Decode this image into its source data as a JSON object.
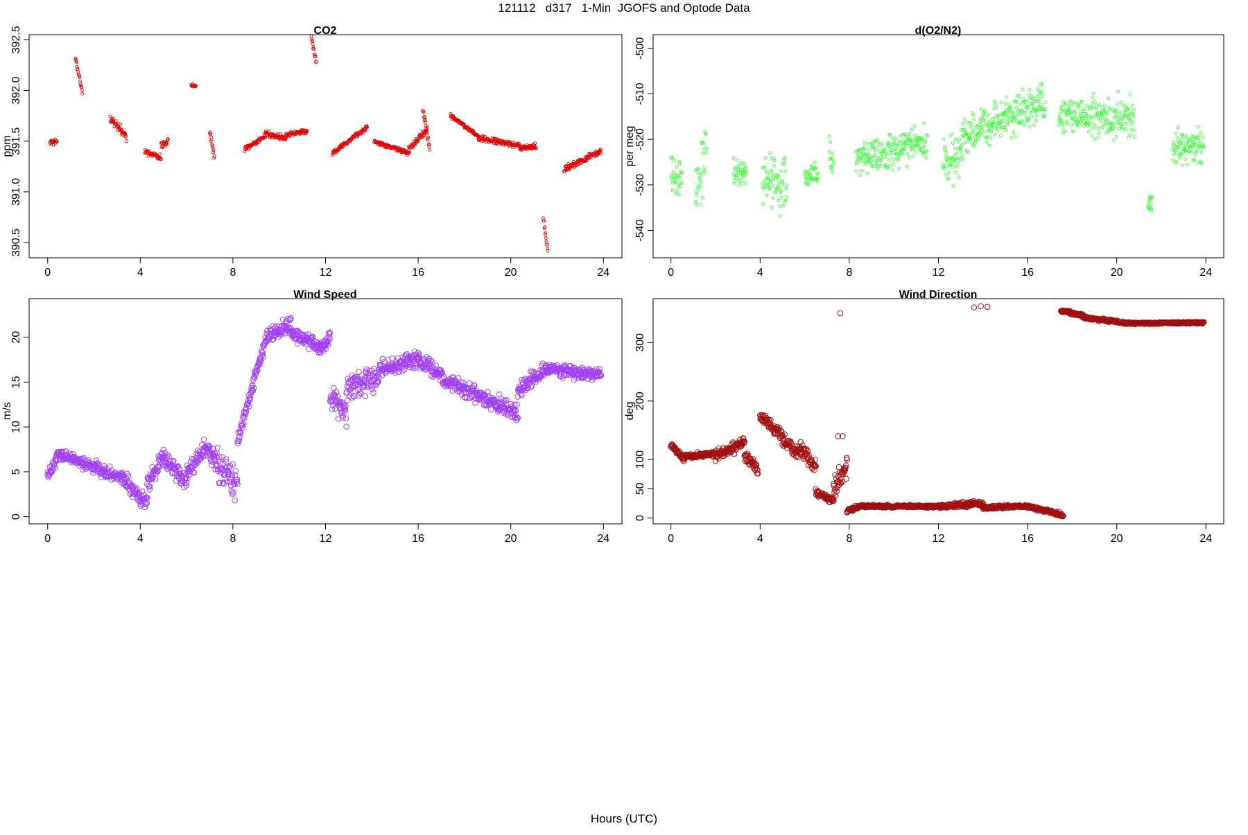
{
  "figure": {
    "title": "121112   d317   1-Min  JGOFS and Optode Data",
    "xlabel": "Hours (UTC)"
  },
  "chart_data": [
    {
      "type": "scatter",
      "title": "CO2",
      "ylabel": "ppm",
      "xlabel": "",
      "color": "#e00000",
      "marker_size": "small",
      "xlim": [
        -0.8,
        24.8
      ],
      "ylim": [
        390.35,
        392.55
      ],
      "xticks": [
        0,
        4,
        8,
        12,
        16,
        20,
        24
      ],
      "yticks": [
        390.5,
        391.0,
        391.5,
        392.0,
        392.5
      ],
      "ytick_labels": [
        "390.5",
        "391.0",
        "391.5",
        "392.0",
        "392.5"
      ],
      "grid": false,
      "segments": [
        [
          0.1,
          0.4,
          391.48,
          391.5,
          0.03
        ],
        [
          1.2,
          1.5,
          392.31,
          391.98,
          0.04
        ],
        [
          2.7,
          3.4,
          391.72,
          391.55,
          0.06
        ],
        [
          4.2,
          4.9,
          391.4,
          391.33,
          0.04
        ],
        [
          4.9,
          5.2,
          391.46,
          391.5,
          0.05
        ],
        [
          6.2,
          6.4,
          392.05,
          392.04,
          0.02
        ],
        [
          7.0,
          7.2,
          391.62,
          391.34,
          0.06
        ],
        [
          8.5,
          9.4,
          391.42,
          391.55,
          0.03
        ],
        [
          9.4,
          10.3,
          391.58,
          391.52,
          0.04
        ],
        [
          10.3,
          11.2,
          391.56,
          391.6,
          0.03
        ],
        [
          11.3,
          11.6,
          392.63,
          392.28,
          0.03
        ],
        [
          12.3,
          13.8,
          391.38,
          391.64,
          0.03
        ],
        [
          14.1,
          15.6,
          391.5,
          391.38,
          0.03
        ],
        [
          15.6,
          16.4,
          391.42,
          391.62,
          0.05
        ],
        [
          16.2,
          16.5,
          391.82,
          391.42,
          0.05
        ],
        [
          17.4,
          18.6,
          391.75,
          391.55,
          0.03
        ],
        [
          18.6,
          20.4,
          391.53,
          391.45,
          0.04
        ],
        [
          20.4,
          21.1,
          391.43,
          391.45,
          0.04
        ],
        [
          21.4,
          21.6,
          390.75,
          390.42,
          0.05
        ],
        [
          22.3,
          23.9,
          391.22,
          391.4,
          0.04
        ]
      ]
    },
    {
      "type": "scatter",
      "title": "d(O2/N2)",
      "ylabel": "per meg",
      "xlabel": "",
      "color": "#33ff33",
      "marker_size": "small",
      "xlim": [
        -0.8,
        24.8
      ],
      "ylim": [
        -546,
        -497
      ],
      "xticks": [
        0,
        4,
        8,
        12,
        16,
        20,
        24
      ],
      "yticks": [
        -540,
        -530,
        -520,
        -510,
        -500
      ],
      "ytick_labels": [
        "-540",
        "-530",
        "-520",
        "-510",
        "-500"
      ],
      "grid": false,
      "segments": [
        [
          0.0,
          0.5,
          -528,
          -528,
          6
        ],
        [
          1.1,
          1.6,
          -532,
          -522,
          9
        ],
        [
          2.8,
          3.4,
          -527,
          -527,
          4
        ],
        [
          4.1,
          5.2,
          -528,
          -530,
          8
        ],
        [
          6.0,
          6.6,
          -528,
          -528,
          4
        ],
        [
          7.1,
          7.3,
          -522,
          -525,
          6
        ],
        [
          8.3,
          11.5,
          -524,
          -521,
          6
        ],
        [
          12.2,
          13.1,
          -526,
          -522,
          8
        ],
        [
          13.1,
          16.8,
          -519,
          -512,
          6
        ],
        [
          17.4,
          20.8,
          -515,
          -515,
          6
        ],
        [
          21.4,
          21.6,
          -535,
          -534,
          3
        ],
        [
          22.5,
          23.9,
          -522,
          -521,
          5
        ]
      ]
    },
    {
      "type": "scatter",
      "title": "Wind Speed",
      "ylabel": "m/s",
      "xlabel": "",
      "color": "#a040f0",
      "marker_size": "large",
      "xlim": [
        -0.8,
        24.8
      ],
      "ylim": [
        -0.8,
        24.3
      ],
      "xticks": [
        0,
        4,
        8,
        12,
        16,
        20,
        24
      ],
      "yticks": [
        0,
        5,
        10,
        15,
        20
      ],
      "ytick_labels": [
        "0",
        "5",
        "10",
        "15",
        "20"
      ],
      "grid": false,
      "segments": [
        [
          0.0,
          0.5,
          4.5,
          7.0,
          1.0
        ],
        [
          0.5,
          2.0,
          7.0,
          5.5,
          0.8
        ],
        [
          2.0,
          3.2,
          5.5,
          4.2,
          1.0
        ],
        [
          3.2,
          4.3,
          4.2,
          1.5,
          1.5
        ],
        [
          4.3,
          5.0,
          3.5,
          7.0,
          1.3
        ],
        [
          5.0,
          6.0,
          6.5,
          4.0,
          1.5
        ],
        [
          6.0,
          7.0,
          5.0,
          8.0,
          1.5
        ],
        [
          7.0,
          8.2,
          7.0,
          3.5,
          2.5
        ],
        [
          8.2,
          9.5,
          8.5,
          20.5,
          1.0
        ],
        [
          9.5,
          10.5,
          20.0,
          21.5,
          1.2
        ],
        [
          10.5,
          11.8,
          20.5,
          19.0,
          1.2
        ],
        [
          11.8,
          12.2,
          19.0,
          20.0,
          1.0
        ],
        [
          12.2,
          12.9,
          13.5,
          11.5,
          1.8
        ],
        [
          12.9,
          14.3,
          14.5,
          15.5,
          2.0
        ],
        [
          14.3,
          16.0,
          16.5,
          17.5,
          1.2
        ],
        [
          16.0,
          18.0,
          17.5,
          14.0,
          1.2
        ],
        [
          18.0,
          19.5,
          14.0,
          12.5,
          1.2
        ],
        [
          19.5,
          20.3,
          12.5,
          11.5,
          1.5
        ],
        [
          20.3,
          21.5,
          14.0,
          16.5,
          1.2
        ],
        [
          21.5,
          23.9,
          16.5,
          15.8,
          1.0
        ]
      ]
    },
    {
      "type": "scatter",
      "title": "Wind Direction",
      "ylabel": "deg",
      "xlabel": "",
      "color": "#a01010",
      "marker_size": "large",
      "xlim": [
        -0.8,
        24.8
      ],
      "ylim": [
        -10,
        375
      ],
      "xticks": [
        0,
        4,
        8,
        12,
        16,
        20,
        24
      ],
      "yticks": [
        0,
        50,
        100,
        200,
        300
      ],
      "ytick_labels": [
        "0",
        "50",
        "100",
        "200",
        "300"
      ],
      "grid": false,
      "segments": [
        [
          0.0,
          0.6,
          125,
          100,
          6
        ],
        [
          0.6,
          2.0,
          105,
          110,
          6
        ],
        [
          2.0,
          3.3,
          105,
          130,
          12
        ],
        [
          3.3,
          3.9,
          110,
          80,
          15
        ],
        [
          4.0,
          5.0,
          175,
          140,
          12
        ],
        [
          5.0,
          5.7,
          135,
          110,
          15
        ],
        [
          5.7,
          6.5,
          125,
          90,
          20
        ],
        [
          6.5,
          7.3,
          45,
          30,
          10
        ],
        [
          7.3,
          7.9,
          50,
          90,
          25
        ],
        [
          7.9,
          8.4,
          10,
          20,
          5
        ],
        [
          8.4,
          12.0,
          20,
          20,
          3
        ],
        [
          12.0,
          14.0,
          20,
          25,
          6
        ],
        [
          14.0,
          16.0,
          18,
          20,
          4
        ],
        [
          16.0,
          17.6,
          20,
          5,
          4
        ],
        [
          17.5,
          18.5,
          355,
          345,
          4
        ],
        [
          18.5,
          20.5,
          343,
          333,
          3
        ],
        [
          20.5,
          23.9,
          333,
          334,
          2
        ]
      ],
      "extra_points": [
        [
          7.6,
          350
        ],
        [
          13.6,
          360
        ],
        [
          13.9,
          362
        ],
        [
          14.2,
          361
        ],
        [
          7.5,
          140
        ],
        [
          7.7,
          140
        ]
      ]
    }
  ]
}
